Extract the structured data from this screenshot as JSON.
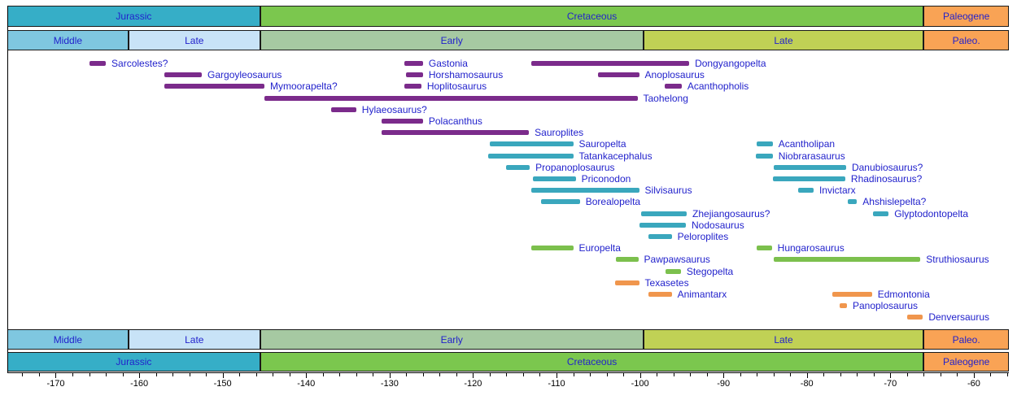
{
  "chart_data": {
    "type": "timeline",
    "description": "Temporal ranges of ankylosaurian dinosaur genera from the Jurassic through the Paleogene",
    "time_axis": {
      "unit": "Ma",
      "min": -175.8,
      "max": -55.8,
      "major_tick_step": 10,
      "minor_tick_step": 2,
      "major_tick_first": -170,
      "major_tick_last": -60,
      "minor_tick_first": -174,
      "minor_tick_last": -56,
      "major_tick_labels": [
        "-170",
        "-160",
        "-150",
        "-140",
        "-130",
        "-120",
        "-110",
        "-100",
        "-90",
        "-80",
        "-70",
        "-60"
      ]
    },
    "periods": [
      {
        "label": "Jurassic",
        "start": -175.8,
        "end": -145.5,
        "color": "#36aec7"
      },
      {
        "label": "Cretaceous",
        "start": -145.5,
        "end": -66,
        "color": "#7bc74e"
      },
      {
        "label": "Paleogene",
        "start": -66,
        "end": -55.8,
        "color": "#f9a355"
      }
    ],
    "epochs": [
      {
        "label": "Middle",
        "start": -175.8,
        "end": -161.3,
        "color": "#7fc7e0"
      },
      {
        "label": "Late",
        "start": -161.3,
        "end": -145.5,
        "color": "#c8e3f7"
      },
      {
        "label": "Early",
        "start": -145.5,
        "end": -99.6,
        "color": "#a6c9a2"
      },
      {
        "label": "Late",
        "start": -99.6,
        "end": -66,
        "color": "#c0d155"
      },
      {
        "label": "Paleo.",
        "start": -66,
        "end": -55.8,
        "color": "#f9a355"
      }
    ],
    "bar_colors": {
      "purple": "#7b2b8b",
      "teal": "#3aa7bd",
      "green": "#7cc04d",
      "orange": "#f0964d"
    },
    "label_color": "#2222cc",
    "taxa": [
      {
        "name": "Sarcolestes?",
        "start": -166,
        "end": -164,
        "color": "purple",
        "row": 0
      },
      {
        "name": "Gastonia",
        "start": -128.2,
        "end": -126,
        "color": "purple",
        "row": 0
      },
      {
        "name": "Dongyangopelta",
        "start": -113,
        "end": -94.1,
        "color": "purple",
        "row": 0
      },
      {
        "name": "Gargoyleosaurus",
        "start": -157,
        "end": -152.5,
        "color": "purple",
        "row": 1
      },
      {
        "name": "Horshamosaurus",
        "start": -128,
        "end": -126,
        "color": "purple",
        "row": 1
      },
      {
        "name": "Anoplosaurus",
        "start": -105,
        "end": -100.1,
        "color": "purple",
        "row": 1
      },
      {
        "name": "Mymoorapelta?",
        "start": -157,
        "end": -145,
        "color": "purple",
        "row": 2
      },
      {
        "name": "Hoplitosaurus",
        "start": -128.2,
        "end": -126.2,
        "color": "purple",
        "row": 2
      },
      {
        "name": "Acanthopholis",
        "start": -97,
        "end": -95,
        "color": "purple",
        "row": 2
      },
      {
        "name": "Taohelong",
        "start": -145,
        "end": -100.3,
        "color": "purple",
        "row": 3
      },
      {
        "name": "Hylaeosaurus?",
        "start": -137,
        "end": -134,
        "color": "purple",
        "row": 4
      },
      {
        "name": "Polacanthus",
        "start": -131,
        "end": -126,
        "color": "purple",
        "row": 5
      },
      {
        "name": "Sauroplites",
        "start": -131,
        "end": -113.3,
        "color": "purple",
        "row": 6
      },
      {
        "name": "Sauropelta",
        "start": -118,
        "end": -108,
        "color": "teal",
        "row": 7
      },
      {
        "name": "Acantholipan",
        "start": -86,
        "end": -84.1,
        "color": "teal",
        "row": 7
      },
      {
        "name": "Tatankacephalus",
        "start": -118.2,
        "end": -108,
        "color": "teal",
        "row": 8
      },
      {
        "name": "Niobrarasaurus",
        "start": -86.1,
        "end": -84.1,
        "color": "teal",
        "row": 8
      },
      {
        "name": "Propanoplosaurus",
        "start": -116,
        "end": -113.2,
        "color": "teal",
        "row": 9
      },
      {
        "name": "Danubiosaurus?",
        "start": -84,
        "end": -75.3,
        "color": "teal",
        "row": 9
      },
      {
        "name": "Priconodon",
        "start": -112.8,
        "end": -107.7,
        "color": "teal",
        "row": 10
      },
      {
        "name": "Rhadinosaurus?",
        "start": -84.1,
        "end": -75.4,
        "color": "teal",
        "row": 10
      },
      {
        "name": "Silvisaurus",
        "start": -113,
        "end": -100.1,
        "color": "teal",
        "row": 11
      },
      {
        "name": "Invictarx",
        "start": -81,
        "end": -79.2,
        "color": "teal",
        "row": 11
      },
      {
        "name": "Borealopelta",
        "start": -111.9,
        "end": -107.2,
        "color": "teal",
        "row": 12
      },
      {
        "name": "Ahshislepelta?",
        "start": -75.1,
        "end": -74,
        "color": "teal",
        "row": 12
      },
      {
        "name": "Zhejiangosaurus?",
        "start": -99.9,
        "end": -94.4,
        "color": "teal",
        "row": 13
      },
      {
        "name": "Glyptodontopelta",
        "start": -72.1,
        "end": -70.2,
        "color": "teal",
        "row": 13
      },
      {
        "name": "Nodosaurus",
        "start": -100.1,
        "end": -94.5,
        "color": "teal",
        "row": 14
      },
      {
        "name": "Peloroplites",
        "start": -99,
        "end": -96.2,
        "color": "teal",
        "row": 15
      },
      {
        "name": "Europelta",
        "start": -113,
        "end": -108,
        "color": "green",
        "row": 16
      },
      {
        "name": "Hungarosaurus",
        "start": -86,
        "end": -84.2,
        "color": "green",
        "row": 16
      },
      {
        "name": "Pawpawsaurus",
        "start": -102.9,
        "end": -100.2,
        "color": "green",
        "row": 17
      },
      {
        "name": "Struthiosaurus",
        "start": -84,
        "end": -66.4,
        "color": "green",
        "row": 17
      },
      {
        "name": "Stegopelta",
        "start": -96.9,
        "end": -95.1,
        "color": "green",
        "row": 18
      },
      {
        "name": "Texasetes",
        "start": -103,
        "end": -100.1,
        "color": "orange",
        "row": 19
      },
      {
        "name": "Animantarx",
        "start": -99,
        "end": -96.2,
        "color": "orange",
        "row": 20
      },
      {
        "name": "Edmontonia",
        "start": -77,
        "end": -72.2,
        "color": "orange",
        "row": 20
      },
      {
        "name": "Panoplosaurus",
        "start": -76.1,
        "end": -75.2,
        "color": "orange",
        "row": 21
      },
      {
        "name": "Denversaurus",
        "start": -68,
        "end": -66.1,
        "color": "orange",
        "row": 22
      }
    ]
  }
}
